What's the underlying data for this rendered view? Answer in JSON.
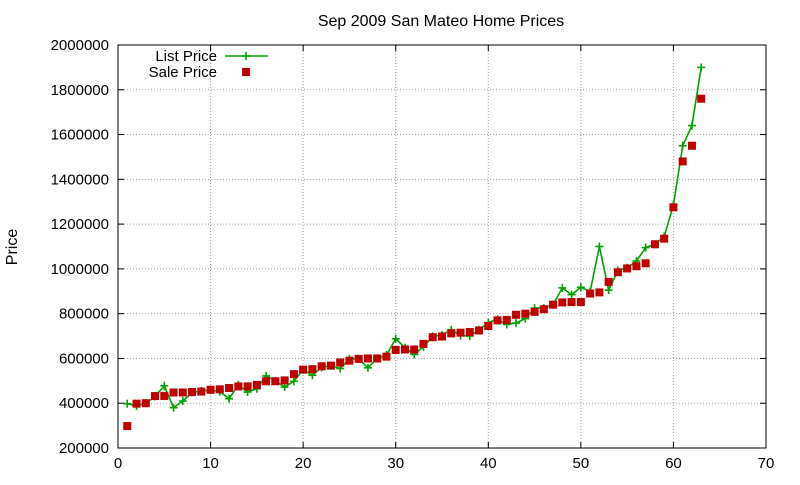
{
  "chart_data": {
    "type": "line",
    "title": "Sep 2009 San Mateo Home Prices",
    "xlabel": "",
    "ylabel": "Price",
    "xlim": [
      0,
      70
    ],
    "ylim": [
      200000,
      2000000
    ],
    "x_ticks": [
      "0",
      "10",
      "20",
      "30",
      "40",
      "50",
      "60",
      "70"
    ],
    "y_ticks": [
      "200000",
      "400000",
      "600000",
      "800000",
      "1000000",
      "1200000",
      "1400000",
      "1600000",
      "1800000",
      "2000000"
    ],
    "grid": true,
    "legend_position": "top-left",
    "series": [
      {
        "name": "List Price",
        "style": "line with crosses",
        "color": "#00a000",
        "points": [
          [
            1,
            398000
          ],
          [
            2,
            388000
          ],
          [
            3,
            400000
          ],
          [
            4,
            430000
          ],
          [
            5,
            478000
          ],
          [
            6,
            380000
          ],
          [
            7,
            410000
          ],
          [
            8,
            448000
          ],
          [
            9,
            455000
          ],
          [
            10,
            458000
          ],
          [
            11,
            452000
          ],
          [
            12,
            420000
          ],
          [
            13,
            482000
          ],
          [
            14,
            450000
          ],
          [
            15,
            465000
          ],
          [
            16,
            522000
          ],
          [
            17,
            500000
          ],
          [
            18,
            472000
          ],
          [
            19,
            498000
          ],
          [
            20,
            550000
          ],
          [
            21,
            525000
          ],
          [
            22,
            560000
          ],
          [
            23,
            568000
          ],
          [
            24,
            555000
          ],
          [
            25,
            598000
          ],
          [
            26,
            598000
          ],
          [
            27,
            558000
          ],
          [
            28,
            600000
          ],
          [
            29,
            615000
          ],
          [
            30,
            688000
          ],
          [
            31,
            648000
          ],
          [
            32,
            618000
          ],
          [
            33,
            652000
          ],
          [
            34,
            698000
          ],
          [
            35,
            705000
          ],
          [
            36,
            728000
          ],
          [
            37,
            702000
          ],
          [
            38,
            700000
          ],
          [
            39,
            728000
          ],
          [
            40,
            760000
          ],
          [
            41,
            775000
          ],
          [
            42,
            752000
          ],
          [
            43,
            758000
          ],
          [
            44,
            778000
          ],
          [
            45,
            825000
          ],
          [
            46,
            825000
          ],
          [
            47,
            840000
          ],
          [
            48,
            915000
          ],
          [
            49,
            885000
          ],
          [
            50,
            918000
          ],
          [
            51,
            898000
          ],
          [
            52,
            1100000
          ],
          [
            53,
            905000
          ],
          [
            54,
            992000
          ],
          [
            55,
            1005000
          ],
          [
            56,
            1035000
          ],
          [
            57,
            1095000
          ],
          [
            58,
            1110000
          ],
          [
            59,
            1145000
          ],
          [
            60,
            1285000
          ],
          [
            61,
            1550000
          ],
          [
            62,
            1640000
          ],
          [
            63,
            1900000
          ]
        ]
      },
      {
        "name": "Sale Price",
        "style": "filled squares",
        "color": "#c00000",
        "points": [
          [
            1,
            298000
          ],
          [
            2,
            398000
          ],
          [
            3,
            400000
          ],
          [
            4,
            432000
          ],
          [
            5,
            432000
          ],
          [
            6,
            448000
          ],
          [
            7,
            448000
          ],
          [
            8,
            450000
          ],
          [
            9,
            452000
          ],
          [
            10,
            460000
          ],
          [
            11,
            462000
          ],
          [
            12,
            468000
          ],
          [
            13,
            475000
          ],
          [
            14,
            475000
          ],
          [
            15,
            482000
          ],
          [
            16,
            498000
          ],
          [
            17,
            498000
          ],
          [
            18,
            502000
          ],
          [
            19,
            530000
          ],
          [
            20,
            550000
          ],
          [
            21,
            552000
          ],
          [
            22,
            565000
          ],
          [
            23,
            568000
          ],
          [
            24,
            582000
          ],
          [
            25,
            590000
          ],
          [
            26,
            598000
          ],
          [
            27,
            600000
          ],
          [
            28,
            600000
          ],
          [
            29,
            608000
          ],
          [
            30,
            638000
          ],
          [
            31,
            640000
          ],
          [
            32,
            640000
          ],
          [
            33,
            665000
          ],
          [
            34,
            695000
          ],
          [
            35,
            698000
          ],
          [
            36,
            712000
          ],
          [
            37,
            715000
          ],
          [
            38,
            718000
          ],
          [
            39,
            725000
          ],
          [
            40,
            745000
          ],
          [
            41,
            770000
          ],
          [
            42,
            772000
          ],
          [
            43,
            795000
          ],
          [
            44,
            800000
          ],
          [
            45,
            808000
          ],
          [
            46,
            820000
          ],
          [
            47,
            840000
          ],
          [
            48,
            850000
          ],
          [
            49,
            852000
          ],
          [
            50,
            852000
          ],
          [
            51,
            890000
          ],
          [
            52,
            895000
          ],
          [
            53,
            942000
          ],
          [
            54,
            985000
          ],
          [
            55,
            1002000
          ],
          [
            56,
            1012000
          ],
          [
            57,
            1025000
          ],
          [
            58,
            1110000
          ],
          [
            59,
            1135000
          ],
          [
            60,
            1275000
          ],
          [
            61,
            1480000
          ],
          [
            62,
            1550000
          ],
          [
            63,
            1760000
          ]
        ]
      }
    ]
  }
}
